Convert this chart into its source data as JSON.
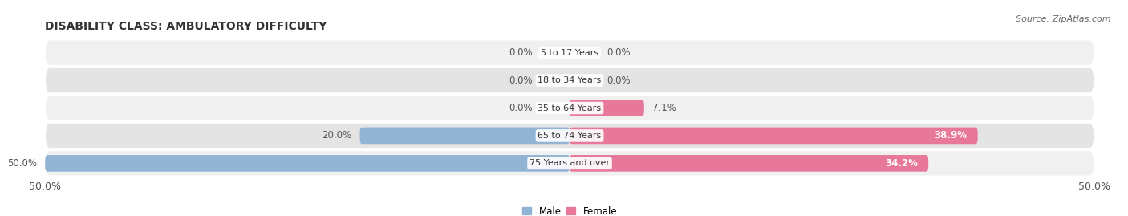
{
  "title": "DISABILITY CLASS: AMBULATORY DIFFICULTY",
  "source": "Source: ZipAtlas.com",
  "categories": [
    "5 to 17 Years",
    "18 to 34 Years",
    "35 to 64 Years",
    "65 to 74 Years",
    "75 Years and over"
  ],
  "male_values": [
    0.0,
    0.0,
    0.0,
    20.0,
    50.0
  ],
  "female_values": [
    0.0,
    0.0,
    7.1,
    38.9,
    34.2
  ],
  "male_color": "#92b4d4",
  "female_color": "#e8789a",
  "row_bg_light": "#f0f0f0",
  "row_bg_dark": "#e4e4e4",
  "x_min": -50.0,
  "x_max": 50.0,
  "x_tick_labels": [
    "50.0%",
    "50.0%"
  ],
  "legend_labels": [
    "Male",
    "Female"
  ],
  "title_fontsize": 10,
  "source_fontsize": 8,
  "tick_fontsize": 9,
  "label_fontsize": 8.5,
  "cat_fontsize": 8,
  "bar_height": 0.6
}
